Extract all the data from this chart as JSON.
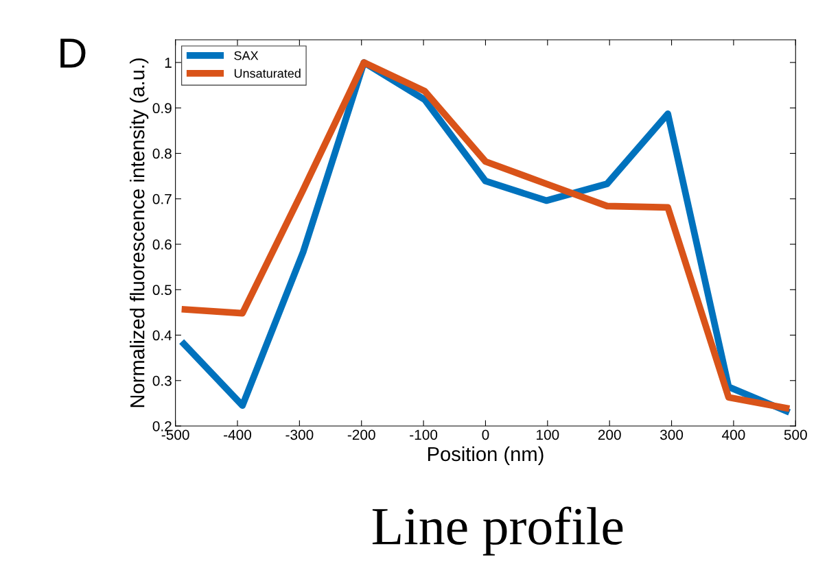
{
  "chart_data": {
    "type": "line",
    "xlabel": "Position (nm)",
    "ylabel": "Normalized fluorescence intensity (a.u.)",
    "annotations": [
      "D",
      "Line profile"
    ],
    "x": [
      -490,
      -392,
      -294,
      -196,
      -98,
      0,
      98,
      196,
      294,
      392,
      490
    ],
    "series": [
      {
        "name": "SAX",
        "color": "#0072bd",
        "values": [
          0.386,
          0.245,
          0.583,
          1.0,
          0.918,
          0.739,
          0.696,
          0.733,
          0.887,
          0.286,
          0.23
        ]
      },
      {
        "name": "Unsaturated",
        "color": "#d95319",
        "values": [
          0.457,
          0.448,
          0.72,
          1.0,
          0.937,
          0.782,
          0.733,
          0.684,
          0.681,
          0.263,
          0.238
        ]
      }
    ],
    "xlim": [
      -500,
      500
    ],
    "xticks": [
      -500,
      -400,
      -300,
      -200,
      -100,
      0,
      100,
      200,
      300,
      400,
      500
    ],
    "ylim": [
      0.2,
      1.05
    ],
    "yticks": [
      0.2,
      0.3,
      0.4,
      0.5,
      0.6,
      0.7,
      0.8,
      0.9,
      1
    ],
    "legend": "top left",
    "grid": false,
    "marker": "none",
    "line_style": "solid"
  }
}
